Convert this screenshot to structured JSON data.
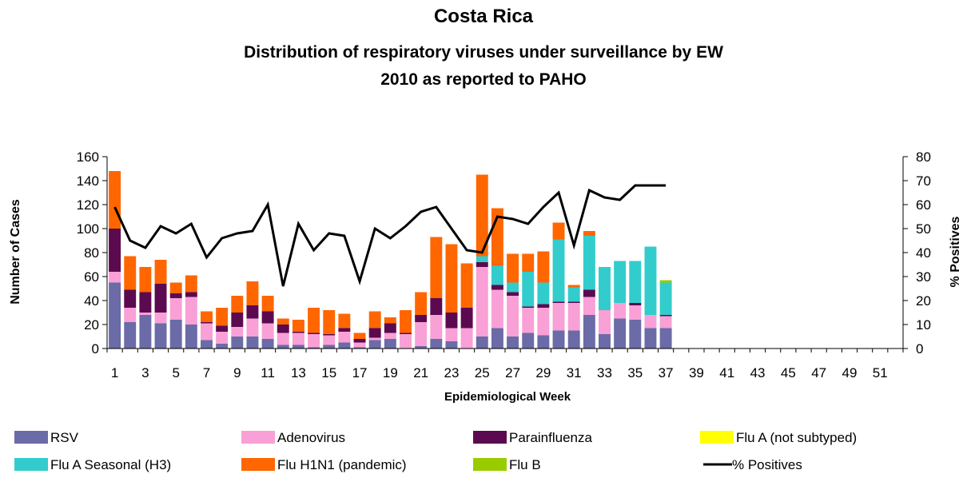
{
  "chart_data": {
    "type": "bar",
    "title": "Costa Rica",
    "subtitle_line1": "Distribution of respiratory viruses under surveillance by EW",
    "subtitle_line2": "2010 as reported to PAHO",
    "xlabel": "Epidemiological Week",
    "ylabel": "Number of Cases",
    "y2label": "% Positives",
    "ylim": [
      0,
      160
    ],
    "y2lim": [
      0,
      80
    ],
    "yticks": [
      0,
      20,
      40,
      60,
      80,
      100,
      120,
      140,
      160
    ],
    "y2ticks": [
      0,
      10,
      20,
      30,
      40,
      50,
      60,
      70,
      80
    ],
    "x_count": 52,
    "x_tick_labels": [
      "1",
      "3",
      "5",
      "7",
      "9",
      "11",
      "13",
      "15",
      "17",
      "19",
      "21",
      "23",
      "25",
      "27",
      "29",
      "31",
      "33",
      "35",
      "37",
      "39",
      "41",
      "43",
      "45",
      "47",
      "49",
      "51"
    ],
    "stack_order": [
      "RSV",
      "Adenovirus",
      "Parainfluenza",
      "Flu A (not subtyped)",
      "Flu A Seasonal (H3)",
      "Flu H1N1 (pandemic)",
      "Flu B"
    ],
    "series": [
      {
        "name": "RSV",
        "color": "#6B6BA8",
        "values": [
          55,
          22,
          28,
          21,
          24,
          20,
          7,
          4,
          10,
          10,
          8,
          3,
          3,
          1,
          3,
          5,
          1,
          7,
          8,
          0,
          2,
          8,
          6,
          0,
          10,
          17,
          10,
          13,
          11,
          15,
          15,
          28,
          12,
          25,
          24,
          17,
          17
        ]
      },
      {
        "name": "Adenovirus",
        "color": "#F9A0D6",
        "values": [
          9,
          12,
          2,
          9,
          18,
          23,
          14,
          10,
          8,
          15,
          13,
          10,
          10,
          11,
          8,
          9,
          4,
          2,
          5,
          12,
          20,
          20,
          11,
          17,
          58,
          32,
          34,
          21,
          23,
          23,
          23,
          15,
          20,
          13,
          12,
          11,
          10
        ]
      },
      {
        "name": "Parainfluenza",
        "color": "#5C0A4F",
        "values": [
          36,
          15,
          17,
          24,
          4,
          4,
          1,
          5,
          12,
          11,
          10,
          7,
          1,
          1,
          1,
          3,
          3,
          8,
          8,
          1,
          6,
          14,
          13,
          17,
          4,
          4,
          3,
          1,
          3,
          1,
          1,
          6,
          0,
          0,
          2,
          0,
          1
        ]
      },
      {
        "name": "Flu A (not subtyped)",
        "color": "#FFFF00",
        "values": [
          0,
          0,
          0,
          0,
          0,
          0,
          0,
          0,
          0,
          0,
          0,
          0,
          0,
          0,
          0,
          0,
          0,
          0,
          0,
          0,
          0,
          0,
          0,
          0,
          0,
          0,
          0,
          0,
          0,
          0,
          0,
          0,
          0,
          0,
          0,
          0,
          0
        ]
      },
      {
        "name": "Flu A Seasonal (H3)",
        "color": "#33CCCC",
        "values": [
          0,
          0,
          0,
          0,
          0,
          0,
          0,
          0,
          0,
          0,
          0,
          0,
          0,
          0,
          0,
          0,
          0,
          0,
          0,
          0,
          0,
          0,
          0,
          0,
          5,
          16,
          8,
          29,
          18,
          52,
          12,
          45,
          36,
          35,
          35,
          57,
          27
        ]
      },
      {
        "name": "Flu H1N1 (pandemic)",
        "color": "#FF6600",
        "values": [
          48,
          28,
          21,
          20,
          9,
          14,
          9,
          15,
          14,
          20,
          13,
          5,
          10,
          21,
          20,
          12,
          5,
          14,
          5,
          19,
          19,
          51,
          57,
          37,
          68,
          48,
          24,
          15,
          26,
          14,
          2,
          4,
          0,
          0,
          0,
          0,
          0
        ]
      },
      {
        "name": "Flu B",
        "color": "#99CC00",
        "values": [
          0,
          0,
          0,
          0,
          0,
          0,
          0,
          0,
          0,
          0,
          0,
          0,
          0,
          0,
          0,
          0,
          0,
          0,
          0,
          0,
          0,
          0,
          0,
          0,
          0,
          0,
          0,
          0,
          0,
          0,
          0,
          0,
          0,
          0,
          0,
          0,
          2
        ]
      }
    ],
    "line": {
      "name": "% Positives",
      "color": "#000000",
      "values": [
        59,
        45,
        42,
        51,
        48,
        52,
        38,
        46,
        48,
        49,
        60,
        26,
        52,
        41,
        48,
        47,
        28,
        50,
        46,
        51,
        57,
        59,
        50,
        41,
        40,
        55,
        54,
        52,
        59,
        65,
        43,
        66,
        63,
        62,
        68,
        68,
        68
      ]
    },
    "legend": {
      "placement": "bottom",
      "entries": [
        {
          "label": "RSV",
          "color": "#6B6BA8",
          "kind": "box"
        },
        {
          "label": "Adenovirus",
          "color": "#F9A0D6",
          "kind": "box"
        },
        {
          "label": "Parainfluenza",
          "color": "#5C0A4F",
          "kind": "box"
        },
        {
          "label": "Flu A (not subtyped)",
          "color": "#FFFF00",
          "kind": "box"
        },
        {
          "label": "Flu A Seasonal (H3)",
          "color": "#33CCCC",
          "kind": "box"
        },
        {
          "label": "Flu H1N1 (pandemic)",
          "color": "#FF6600",
          "kind": "box"
        },
        {
          "label": "Flu B",
          "color": "#99CC00",
          "kind": "box"
        },
        {
          "label": "% Positives",
          "color": "#000000",
          "kind": "line"
        }
      ]
    },
    "grid": false
  }
}
